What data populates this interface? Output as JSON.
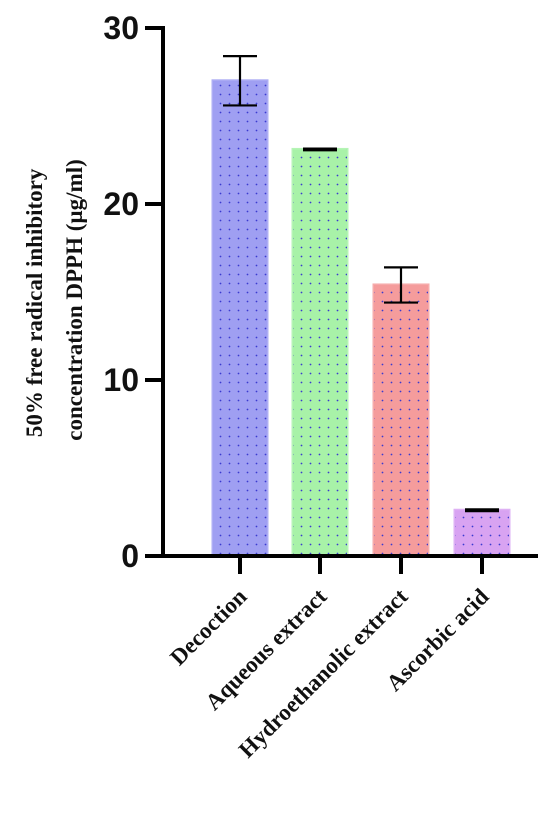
{
  "chart_data": {
    "type": "bar",
    "title": "",
    "xlabel": "",
    "ylabel_lines": [
      "50% free radical inhibitory",
      "concentration DPPH (µg/ml)"
    ],
    "categories": [
      "Decoction",
      "Aqueous extract",
      "Hydroethanolic extract",
      "Ascorbic acid"
    ],
    "values": [
      27.0,
      23.1,
      15.4,
      2.6
    ],
    "errors": [
      1.4,
      0.05,
      1.0,
      0.05
    ],
    "colors": [
      "#9f9ff2",
      "#a8f2a8",
      "#f59c9c",
      "#d8a3f2"
    ],
    "ylim": [
      0,
      30
    ],
    "yticks": [
      0,
      10,
      20,
      30
    ],
    "grid": false,
    "pattern": "dotted"
  }
}
